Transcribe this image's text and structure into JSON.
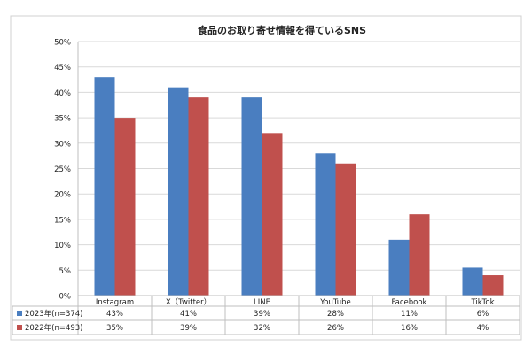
{
  "chart_data": {
    "type": "bar",
    "title": "食品のお取り寄せ情報を得ているSNS",
    "categories": [
      "Instagram",
      "X（Twitter）",
      "LINE",
      "YouTube",
      "Facebook",
      "TikTok"
    ],
    "series": [
      {
        "name": "2023年(n=374)",
        "color": "#4a7ec0",
        "values": [
          43,
          41,
          39,
          28,
          11,
          5.5
        ],
        "labels": [
          "43%",
          "41%",
          "39%",
          "28%",
          "11%",
          "6%"
        ]
      },
      {
        "name": "2022年(n=493)",
        "color": "#c0504d",
        "values": [
          35,
          39,
          32,
          26,
          16,
          4
        ],
        "labels": [
          "35%",
          "39%",
          "32%",
          "26%",
          "16%",
          "4%"
        ]
      }
    ],
    "ylim": [
      0,
      50
    ],
    "yticks": [
      "0%",
      "5%",
      "10%",
      "15%",
      "20%",
      "25%",
      "30%",
      "35%",
      "40%",
      "45%",
      "50%"
    ],
    "grid": true,
    "legend": "data-table-left"
  }
}
